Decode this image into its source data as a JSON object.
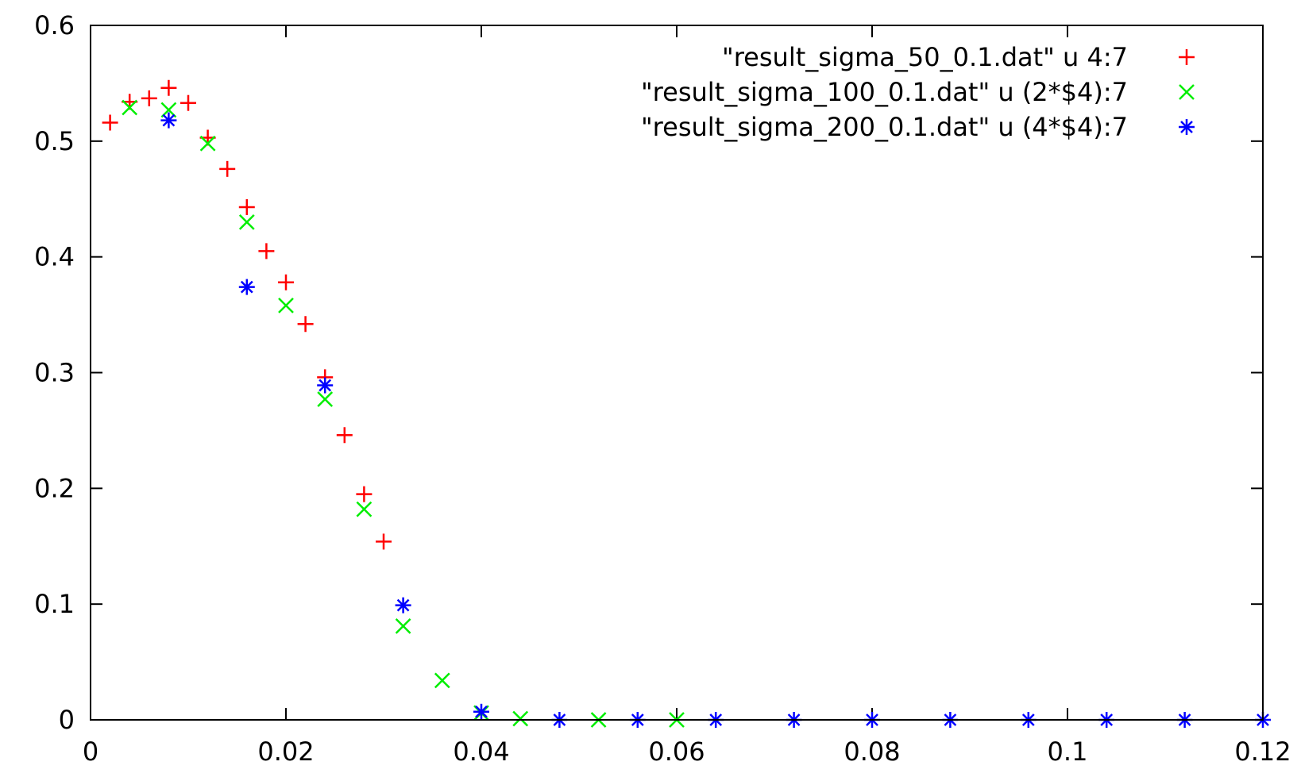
{
  "chart_data": {
    "type": "scatter",
    "title": "",
    "xlabel": "",
    "ylabel": "",
    "xlim": [
      0,
      0.12
    ],
    "ylim": [
      0,
      0.6
    ],
    "grid": false,
    "legend_position": "top-right",
    "x_ticks": [
      {
        "value": 0,
        "label": "0"
      },
      {
        "value": 0.02,
        "label": "0.02"
      },
      {
        "value": 0.04,
        "label": "0.04"
      },
      {
        "value": 0.06,
        "label": "0.06"
      },
      {
        "value": 0.08,
        "label": "0.08"
      },
      {
        "value": 0.1,
        "label": "0.1"
      },
      {
        "value": 0.12,
        "label": "0.12"
      }
    ],
    "y_ticks": [
      {
        "value": 0,
        "label": "0"
      },
      {
        "value": 0.1,
        "label": "0.1"
      },
      {
        "value": 0.2,
        "label": "0.2"
      },
      {
        "value": 0.3,
        "label": "0.3"
      },
      {
        "value": 0.4,
        "label": "0.4"
      },
      {
        "value": 0.5,
        "label": "0.5"
      },
      {
        "value": 0.6,
        "label": "0.6"
      }
    ],
    "series": [
      {
        "name": "\"result_sigma_50_0.1.dat\" u 4:7",
        "marker": "plus",
        "color": "#ff0000",
        "points": [
          [
            0.002,
            0.516
          ],
          [
            0.004,
            0.534
          ],
          [
            0.006,
            0.537
          ],
          [
            0.008,
            0.546
          ],
          [
            0.01,
            0.533
          ],
          [
            0.012,
            0.503
          ],
          [
            0.014,
            0.476
          ],
          [
            0.016,
            0.443
          ],
          [
            0.018,
            0.405
          ],
          [
            0.02,
            0.378
          ],
          [
            0.022,
            0.342
          ],
          [
            0.024,
            0.296
          ],
          [
            0.026,
            0.246
          ],
          [
            0.028,
            0.195
          ],
          [
            0.03,
            0.154
          ]
        ]
      },
      {
        "name": "\"result_sigma_100_0.1.dat\" u (2*$4):7",
        "marker": "cross",
        "color": "#00ee00",
        "points": [
          [
            0.004,
            0.529
          ],
          [
            0.008,
            0.527
          ],
          [
            0.012,
            0.498
          ],
          [
            0.016,
            0.43
          ],
          [
            0.02,
            0.358
          ],
          [
            0.024,
            0.277
          ],
          [
            0.028,
            0.182
          ],
          [
            0.032,
            0.081
          ],
          [
            0.036,
            0.034
          ],
          [
            0.04,
            0.006
          ],
          [
            0.044,
            0.001
          ],
          [
            0.052,
            0.0
          ],
          [
            0.06,
            0.0
          ]
        ]
      },
      {
        "name": "\"result_sigma_200_0.1.dat\" u (4*$4):7",
        "marker": "star",
        "color": "#0000ff",
        "points": [
          [
            0.008,
            0.518
          ],
          [
            0.016,
            0.374
          ],
          [
            0.024,
            0.289
          ],
          [
            0.032,
            0.099
          ],
          [
            0.04,
            0.007
          ],
          [
            0.048,
            0.0
          ],
          [
            0.056,
            0.0
          ],
          [
            0.064,
            0.0
          ],
          [
            0.072,
            0.0
          ],
          [
            0.08,
            0.0
          ],
          [
            0.088,
            0.0
          ],
          [
            0.096,
            0.0
          ],
          [
            0.104,
            0.0
          ],
          [
            0.112,
            0.0
          ],
          [
            0.12,
            0.0
          ]
        ]
      }
    ]
  }
}
